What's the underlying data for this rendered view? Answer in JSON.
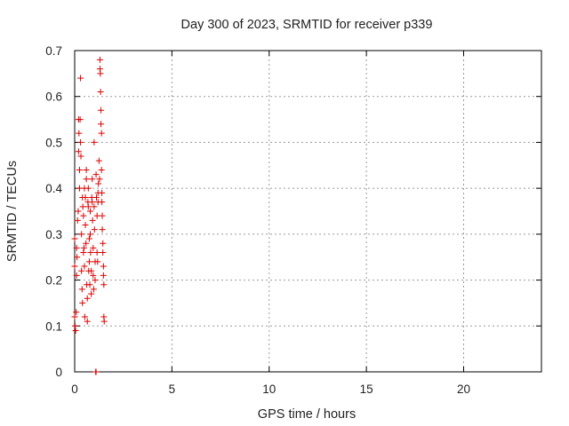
{
  "chart_data": {
    "type": "scatter",
    "title": "Day 300 of 2023, SRMTID for receiver p339",
    "xlabel": "GPS time / hours",
    "ylabel": "SRMTID / TECUs",
    "xlim": [
      0,
      24
    ],
    "ylim": [
      0,
      0.7
    ],
    "x_ticks": [
      0,
      5,
      10,
      15,
      20
    ],
    "x_tick_labels": [
      "0",
      "5",
      "10",
      "15",
      "20"
    ],
    "y_ticks": [
      0,
      0.1,
      0.2,
      0.3,
      0.4,
      0.5,
      0.6,
      0.7
    ],
    "y_tick_labels": [
      "0",
      "0.1",
      "0.2",
      "0.3",
      "0.4",
      "0.5",
      "0.6",
      "0.7"
    ],
    "grid": true,
    "marker": "+",
    "marker_color": "#dd0000",
    "points": [
      [
        0.0,
        0.23
      ],
      [
        0.0,
        0.29
      ],
      [
        0.0,
        0.12
      ],
      [
        0.02,
        0.1
      ],
      [
        0.05,
        0.09
      ],
      [
        0.08,
        0.13
      ],
      [
        0.1,
        0.27
      ],
      [
        0.1,
        0.21
      ],
      [
        0.12,
        0.25
      ],
      [
        0.15,
        0.33
      ],
      [
        0.18,
        0.35
      ],
      [
        0.2,
        0.55
      ],
      [
        0.2,
        0.48
      ],
      [
        0.22,
        0.52
      ],
      [
        0.25,
        0.44
      ],
      [
        0.25,
        0.4
      ],
      [
        0.28,
        0.55
      ],
      [
        0.3,
        0.64
      ],
      [
        0.3,
        0.5
      ],
      [
        0.32,
        0.47
      ],
      [
        0.35,
        0.3
      ],
      [
        0.35,
        0.22
      ],
      [
        0.38,
        0.18
      ],
      [
        0.4,
        0.15
      ],
      [
        0.4,
        0.38
      ],
      [
        0.42,
        0.36
      ],
      [
        0.45,
        0.34
      ],
      [
        0.45,
        0.26
      ],
      [
        0.48,
        0.27
      ],
      [
        0.5,
        0.23
      ],
      [
        0.5,
        0.4
      ],
      [
        0.52,
        0.12
      ],
      [
        0.55,
        0.38
      ],
      [
        0.55,
        0.32
      ],
      [
        0.58,
        0.28
      ],
      [
        0.6,
        0.42
      ],
      [
        0.6,
        0.44
      ],
      [
        0.62,
        0.19
      ],
      [
        0.65,
        0.11
      ],
      [
        0.65,
        0.16
      ],
      [
        0.68,
        0.37
      ],
      [
        0.7,
        0.4
      ],
      [
        0.7,
        0.36
      ],
      [
        0.72,
        0.22
      ],
      [
        0.75,
        0.29
      ],
      [
        0.75,
        0.24
      ],
      [
        0.78,
        0.19
      ],
      [
        0.8,
        0.35
      ],
      [
        0.8,
        0.3
      ],
      [
        0.82,
        0.26
      ],
      [
        0.85,
        0.22
      ],
      [
        0.85,
        0.17
      ],
      [
        0.88,
        0.38
      ],
      [
        0.9,
        0.42
      ],
      [
        0.9,
        0.37
      ],
      [
        0.92,
        0.33
      ],
      [
        0.95,
        0.27
      ],
      [
        0.95,
        0.21
      ],
      [
        0.98,
        0.18
      ],
      [
        1.0,
        0.5
      ],
      [
        1.0,
        0.36
      ],
      [
        1.02,
        0.31
      ],
      [
        1.05,
        0.24
      ],
      [
        1.05,
        0.2
      ],
      [
        1.08,
        0.0
      ],
      [
        1.1,
        0.0
      ],
      [
        1.1,
        0.43
      ],
      [
        1.12,
        0.38
      ],
      [
        1.15,
        0.34
      ],
      [
        1.15,
        0.26
      ],
      [
        1.18,
        0.24
      ],
      [
        1.2,
        0.39
      ],
      [
        1.2,
        0.37
      ],
      [
        1.22,
        0.41
      ],
      [
        1.25,
        0.46
      ],
      [
        1.28,
        0.42
      ],
      [
        1.3,
        0.68
      ],
      [
        1.3,
        0.66
      ],
      [
        1.32,
        0.65
      ],
      [
        1.33,
        0.61
      ],
      [
        1.35,
        0.57
      ],
      [
        1.35,
        0.54
      ],
      [
        1.38,
        0.52
      ],
      [
        1.38,
        0.44
      ],
      [
        1.4,
        0.39
      ],
      [
        1.4,
        0.37
      ],
      [
        1.42,
        0.34
      ],
      [
        1.42,
        0.31
      ],
      [
        1.45,
        0.28
      ],
      [
        1.45,
        0.26
      ],
      [
        1.48,
        0.23
      ],
      [
        1.48,
        0.21
      ],
      [
        1.5,
        0.19
      ],
      [
        1.5,
        0.12
      ],
      [
        1.52,
        0.11
      ]
    ]
  }
}
